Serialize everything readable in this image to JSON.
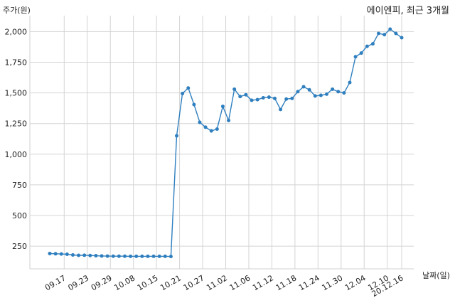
{
  "chart_data": {
    "type": "line",
    "title": "에이엔피, 최근 3개월",
    "ylabel": "주가(원)",
    "xlabel": "날짜(일)",
    "ylim": [
      65,
      2130
    ],
    "yticks": [
      250,
      500,
      750,
      1000,
      1250,
      1500,
      1750,
      2000
    ],
    "ytick_labels": [
      "250",
      "500",
      "750",
      "1,000",
      "1,250",
      "1,500",
      "1,750",
      "2,000"
    ],
    "xtick_labels": [
      "09.17",
      "09.23",
      "09.29",
      "10.08",
      "10.15",
      "10.21",
      "10.27",
      "11.02",
      "11.06",
      "11.12",
      "11.18",
      "11.24",
      "11.30",
      "12.04",
      "12.10",
      "20.12.16"
    ],
    "xtick_index": [
      2.5,
      6.5,
      10.5,
      14.5,
      18.5,
      22.5,
      26.5,
      30.5,
      34.5,
      38.5,
      42.5,
      46.5,
      50.5,
      54.5,
      58.5,
      61
    ],
    "grid": true,
    "series": [
      {
        "color": "#2f7fbf",
        "values": [
          190,
          188,
          186,
          184,
          178,
          175,
          176,
          174,
          172,
          170,
          169,
          168,
          168,
          168,
          167,
          167,
          167,
          167,
          167,
          167,
          167,
          166,
          1150,
          1495,
          1540,
          1405,
          1260,
          1220,
          1190,
          1205,
          1390,
          1275,
          1530,
          1470,
          1485,
          1440,
          1445,
          1460,
          1465,
          1455,
          1365,
          1450,
          1455,
          1510,
          1550,
          1525,
          1475,
          1480,
          1490,
          1530,
          1510,
          1500,
          1585,
          1795,
          1825,
          1880,
          1900,
          1985,
          1975,
          2020,
          1985,
          1950
        ]
      }
    ]
  }
}
